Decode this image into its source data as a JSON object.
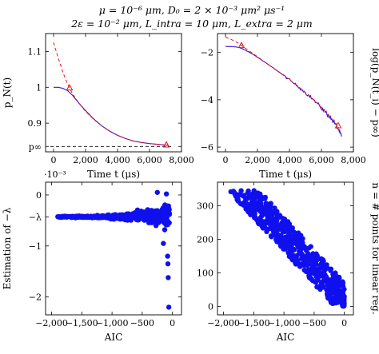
{
  "title_lines": [
    "μ = 10⁻⁶ μm, D₀ = 2 × 10⁻³ μm² μs⁻¹",
    "2ε = 10⁻² μm, L_intra = 10 μm, L_extra = 2 μm"
  ],
  "colors": {
    "blue": "#1010ee",
    "red": "#ee1111",
    "purple": "#9a1a9a",
    "black": "#000000"
  },
  "chart_data": [
    {
      "id": "top-left",
      "type": "line",
      "xlabel": "Time t (μs)",
      "ylabel": "p_N(t)",
      "xlim": [
        -500,
        8000
      ],
      "ylim": [
        0.82,
        1.15
      ],
      "xticks": [
        0,
        2000,
        4000,
        6000,
        8000
      ],
      "xtick_labels": [
        "0",
        "2,000",
        "4,000",
        "6,000",
        "8,000"
      ],
      "yticks": [
        0.9,
        1.0,
        1.1
      ],
      "ytick_labels": [
        "0.9",
        "1",
        "1.1"
      ],
      "extra_ytick": {
        "value": 0.835,
        "label": "p∞"
      },
      "series": [
        {
          "style": "blue-solid",
          "x": [
            0,
            300,
            600,
            900,
            1200,
            1600,
            2000,
            2500,
            3000,
            3500,
            4000,
            4500,
            5000,
            5500,
            6000,
            6500,
            7000,
            7200
          ],
          "y": [
            1.0,
            1.0,
            0.997,
            0.99,
            0.977,
            0.955,
            0.935,
            0.912,
            0.893,
            0.878,
            0.866,
            0.857,
            0.85,
            0.846,
            0.843,
            0.841,
            0.839,
            0.838
          ]
        },
        {
          "style": "red-dashed",
          "x": [
            0,
            200,
            400,
            600,
            800,
            1000,
            1200,
            1600,
            2000,
            2500,
            3000,
            3500,
            4000,
            4500,
            5000,
            5500,
            6000,
            6500,
            7000,
            7200
          ],
          "y": [
            1.125,
            1.095,
            1.067,
            1.04,
            1.017,
            0.998,
            0.981,
            0.955,
            0.933,
            0.911,
            0.893,
            0.878,
            0.866,
            0.857,
            0.85,
            0.846,
            0.843,
            0.841,
            0.839,
            0.838
          ]
        },
        {
          "style": "black-dashed",
          "x": [
            -200,
            7400
          ],
          "y": [
            0.835,
            0.835
          ]
        }
      ],
      "markers": [
        {
          "x": 1000,
          "y": 0.998
        },
        {
          "x": 7050,
          "y": 0.839
        }
      ]
    },
    {
      "id": "top-right",
      "type": "line",
      "xlabel": "Time t (μs)",
      "ylabel": "log(p_N(t_i) − p∞)",
      "xlim": [
        -500,
        8000
      ],
      "ylim": [
        -6.2,
        -1.2
      ],
      "xticks": [
        0,
        2000,
        4000,
        6000,
        8000
      ],
      "xtick_labels": [
        "0",
        "2,000",
        "4,000",
        "6,000",
        "8,000"
      ],
      "yticks": [
        -6,
        -4,
        -2
      ],
      "ytick_labels": [
        "−6",
        "−4",
        "−2"
      ],
      "series": [
        {
          "style": "blue-noisy",
          "x": [
            0,
            300,
            600,
            900,
            1200,
            1600,
            2000,
            2500,
            3000,
            3500,
            4000,
            4500,
            5000,
            5500,
            6000,
            6300,
            6600,
            6900,
            7100,
            7250
          ],
          "y": [
            -1.75,
            -1.75,
            -1.76,
            -1.8,
            -1.89,
            -2.03,
            -2.2,
            -2.43,
            -2.66,
            -2.9,
            -3.16,
            -3.42,
            -3.7,
            -4.0,
            -4.35,
            -4.55,
            -4.8,
            -5.05,
            -5.3,
            -5.55
          ]
        },
        {
          "style": "red-dashed",
          "x": [
            0,
            300,
            600,
            900,
            1200,
            1600,
            2000,
            2500,
            3000,
            3500,
            4000,
            4500,
            5000,
            5500,
            6000,
            6300,
            6600,
            6900,
            7100
          ],
          "y": [
            -1.35,
            -1.43,
            -1.53,
            -1.65,
            -1.8,
            -1.99,
            -2.18,
            -2.42,
            -2.66,
            -2.9,
            -3.15,
            -3.41,
            -3.69,
            -3.98,
            -4.32,
            -4.52,
            -4.77,
            -5.02,
            -5.2
          ]
        }
      ],
      "markers": [
        {
          "x": 1000,
          "y": -1.71
        },
        {
          "x": 7050,
          "y": -5.1
        }
      ]
    },
    {
      "id": "bottom-left",
      "type": "scatter",
      "xlabel": "AIC",
      "ylabel": "Estimation of −λ",
      "scale_label": "·10⁻³",
      "xlim": [
        -2100,
        150
      ],
      "ylim": [
        -2.35,
        0.25
      ],
      "xticks": [
        -2000,
        -1500,
        -1000,
        -500,
        0
      ],
      "xtick_labels": [
        "−2,000",
        "−1,500",
        "−1,000",
        "−500",
        "0"
      ],
      "yticks": [
        0,
        -1,
        -2
      ],
      "ytick_labels": [
        "0",
        "−1",
        "−2"
      ],
      "extra_ytick": {
        "value": -0.43,
        "label": "−λ"
      },
      "series": [
        {
          "name": "",
          "x_range": [
            -1900,
            -50
          ],
          "center_y": -0.43
        }
      ]
    },
    {
      "id": "bottom-right",
      "type": "scatter",
      "xlabel": "AIC",
      "ylabel": "n = # points for linear reg.",
      "xlim": [
        -2100,
        150
      ],
      "ylim": [
        -25,
        370
      ],
      "xticks": [
        -2000,
        -1500,
        -1000,
        -500,
        0
      ],
      "xtick_labels": [
        "−2,000",
        "−1,500",
        "−1,000",
        "−500",
        "0"
      ],
      "yticks": [
        0,
        100,
        200,
        300
      ],
      "ytick_labels": [
        "0",
        "100",
        "200",
        "300"
      ],
      "series": [
        {
          "name": "",
          "x_range": [
            -1900,
            0
          ],
          "y_range": [
            0,
            350
          ]
        }
      ]
    }
  ]
}
